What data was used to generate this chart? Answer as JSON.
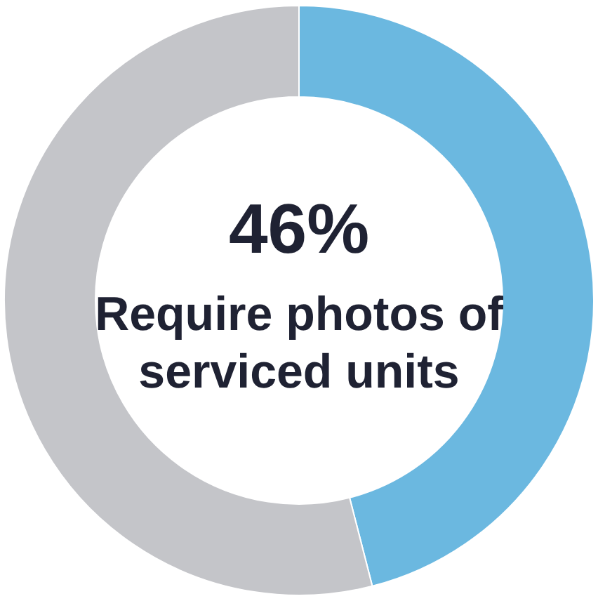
{
  "chart_data": {
    "type": "donut",
    "categories": [
      null,
      null
    ],
    "values": [
      46,
      54
    ],
    "colors": [
      "#6bb8e0",
      "#c4c5c9"
    ],
    "annotations": [
      "46%",
      "Require photos of serviced units"
    ]
  }
}
